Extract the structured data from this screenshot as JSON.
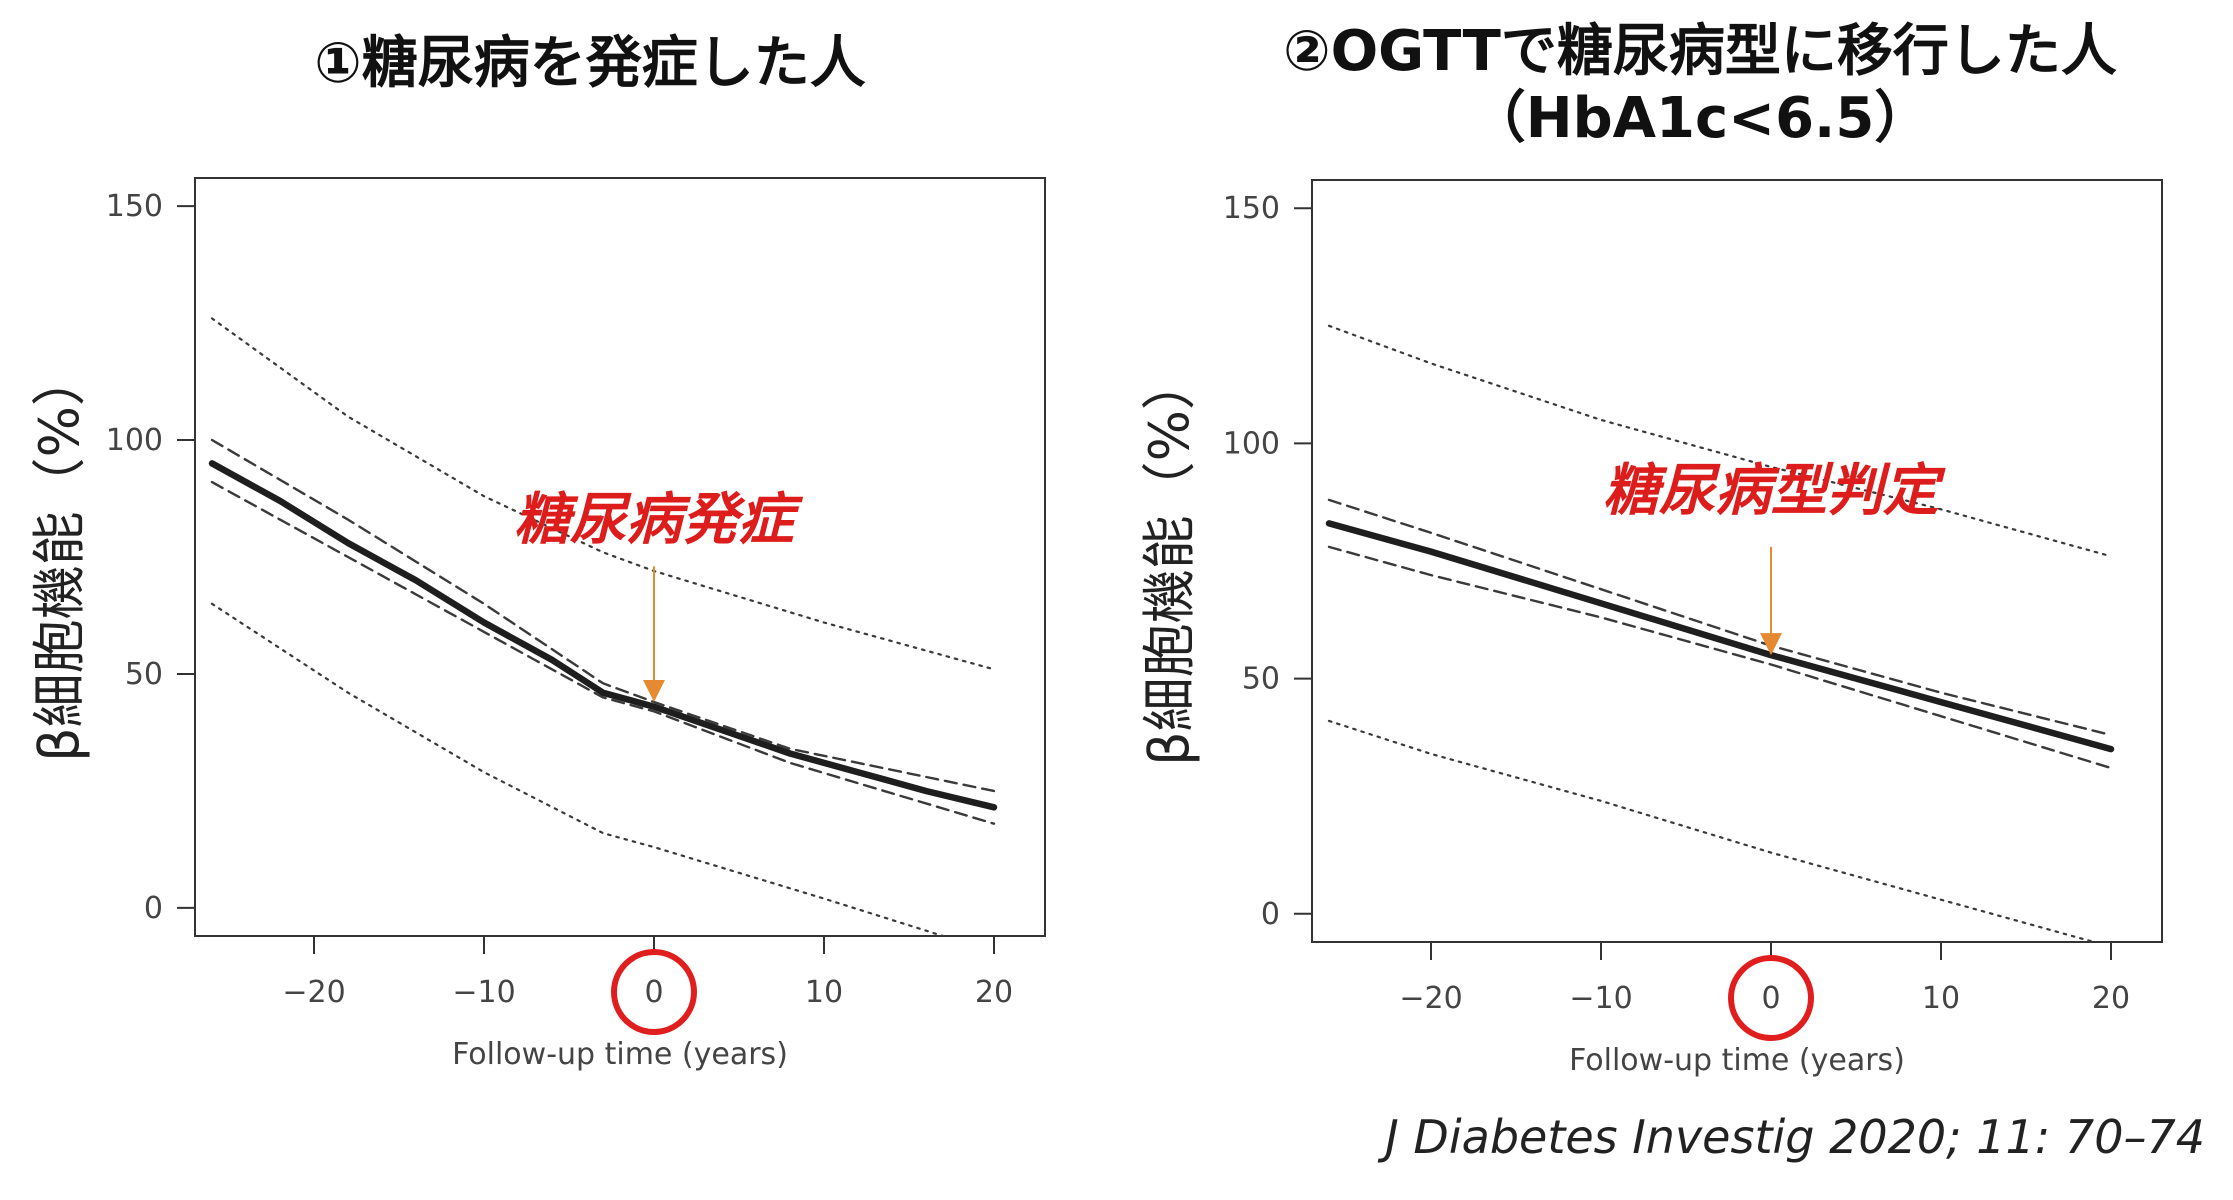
{
  "chart_data": [
    {
      "type": "line",
      "title": "①糖尿病を発症した人",
      "xlabel": "Follow-up time (years)",
      "ylabel": "β細胞機能（%）",
      "xlim": [
        -27,
        23
      ],
      "ylim": [
        -6,
        156
      ],
      "xticks": [
        -20,
        -10,
        0,
        10,
        20
      ],
      "xtick_labels": [
        "−20",
        "−10",
        "0",
        "10",
        "20"
      ],
      "yticks": [
        0,
        50,
        100,
        150
      ],
      "grid": false,
      "series": [
        {
          "role": "estimate",
          "style": "solid",
          "x": [
            -26,
            -22,
            -18,
            -14,
            -10,
            -6,
            -3,
            0,
            4,
            8,
            12,
            16,
            20
          ],
          "y": [
            95,
            87,
            78,
            70,
            61,
            53,
            46,
            43,
            38,
            33,
            29,
            25,
            21.5
          ]
        },
        {
          "role": "ci-upper",
          "style": "dashed",
          "x": [
            -26,
            -18,
            -10,
            -3,
            0,
            8,
            20
          ],
          "y": [
            100,
            83,
            65,
            48,
            44,
            34,
            25
          ]
        },
        {
          "role": "ci-lower",
          "style": "dashed",
          "x": [
            -26,
            -18,
            -10,
            -3,
            0,
            8,
            20
          ],
          "y": [
            91,
            75,
            59,
            45,
            42,
            31,
            18
          ]
        },
        {
          "role": "pi-upper",
          "style": "dotted",
          "x": [
            -26,
            -18,
            -10,
            -3,
            0,
            10,
            20
          ],
          "y": [
            126,
            105,
            88,
            76,
            72,
            61,
            51
          ]
        },
        {
          "role": "pi-lower",
          "style": "dotted",
          "x": [
            -26,
            -18,
            -10,
            -3,
            0,
            10,
            17
          ],
          "y": [
            65,
            46,
            29,
            16,
            13,
            2,
            -6
          ]
        }
      ],
      "annotation": {
        "text": "糖尿病発症",
        "x": 0,
        "y_text": 79,
        "arrow_from": 73,
        "arrow_to": 44,
        "color": "#dd1c1c",
        "arrow_color": "#e58a30"
      },
      "highlight": {
        "label": "0",
        "x": 0,
        "shape": "circle",
        "color": "#e01e1e"
      }
    },
    {
      "type": "line",
      "title": "②OGTTで糖尿病型に移行した人（HbA1c<6.5）",
      "xlabel": "Follow-up time (years)",
      "ylabel": "β細胞機能（%）",
      "xlim": [
        -27,
        23
      ],
      "ylim": [
        -6,
        156
      ],
      "xticks": [
        -20,
        -10,
        0,
        10,
        20
      ],
      "xtick_labels": [
        "−20",
        "−10",
        "0",
        "10",
        "20"
      ],
      "yticks": [
        0,
        50,
        100,
        150
      ],
      "grid": false,
      "series": [
        {
          "role": "estimate",
          "style": "solid",
          "x": [
            -26,
            -20,
            -10,
            0,
            10,
            20
          ],
          "y": [
            83,
            77,
            66,
            55,
            45,
            35
          ]
        },
        {
          "role": "ci-upper",
          "style": "dashed",
          "x": [
            -26,
            -20,
            -10,
            0,
            10,
            20
          ],
          "y": [
            88,
            81,
            69,
            57,
            47,
            38
          ]
        },
        {
          "role": "ci-lower",
          "style": "dashed",
          "x": [
            -26,
            -20,
            -10,
            0,
            10,
            20
          ],
          "y": [
            78,
            72,
            63,
            53,
            42,
            31
          ]
        },
        {
          "role": "pi-upper",
          "style": "dotted",
          "x": [
            -26,
            -20,
            -10,
            0,
            10,
            20
          ],
          "y": [
            125,
            117,
            105,
            95,
            86,
            76
          ]
        },
        {
          "role": "pi-lower",
          "style": "dotted",
          "x": [
            -26,
            -20,
            -10,
            0,
            10,
            19
          ],
          "y": [
            41,
            34,
            24,
            13,
            3,
            -6
          ]
        }
      ],
      "annotation": {
        "text": "糖尿病型判定",
        "x": 0,
        "y_text": 86,
        "arrow_from": 78,
        "arrow_to": 55,
        "color": "#dd1c1c",
        "arrow_color": "#e58a30"
      },
      "highlight": {
        "label": "0",
        "x": 0,
        "shape": "circle",
        "color": "#e01e1e"
      }
    }
  ],
  "titles": {
    "panel1": "①糖尿病を発症した人",
    "panel2_line1": "②OGTTで糖尿病型に移行した人",
    "panel2_line2": "（HbA1c<6.5）"
  },
  "citation": "J Diabetes Investig 2020; 11: 70–74"
}
